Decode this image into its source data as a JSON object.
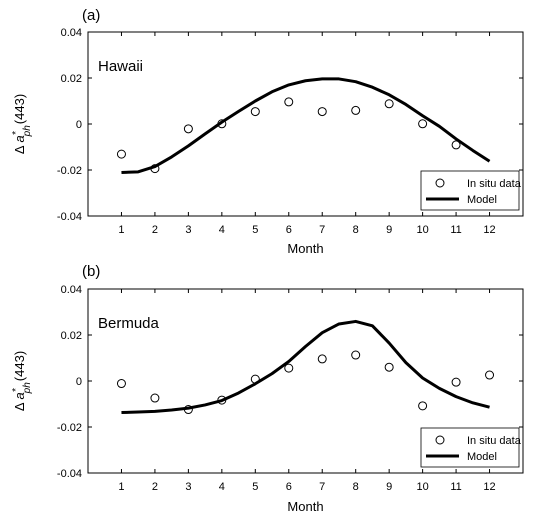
{
  "chart_data": [
    {
      "type": "line",
      "panel_label": "(a)",
      "site": "Hawaii",
      "xlabel": "Month",
      "ylabel": {
        "delta": "Δ",
        "symbol": "a",
        "superscript": "*",
        "subscript": "ph",
        "suffix": "(443)"
      },
      "x_ticks": [
        1,
        2,
        3,
        4,
        5,
        6,
        7,
        8,
        9,
        10,
        11,
        12
      ],
      "y_ticks": [
        "-0.04",
        "-0.02",
        "0",
        "0.02",
        "0.04"
      ],
      "xlim": [
        0,
        13
      ],
      "ylim": [
        -0.04,
        0.04
      ],
      "legend": {
        "position": "bottom-right",
        "entries": [
          "In situ data",
          "Model"
        ]
      },
      "series": [
        {
          "name": "In situ data",
          "style": "open-circle",
          "x": [
            1,
            2,
            3,
            4,
            5,
            6,
            7,
            8,
            9,
            10,
            11
          ],
          "y": [
            -0.0131,
            -0.0194,
            -0.0021,
            0.0001,
            0.0054,
            0.0096,
            0.0054,
            0.0059,
            0.0088,
            0.0001,
            -0.0091
          ]
        },
        {
          "name": "Model",
          "style": "line",
          "x": [
            1,
            1.5,
            2,
            2.5,
            3,
            3.5,
            4,
            4.5,
            5,
            5.5,
            6,
            6.5,
            7,
            7.5,
            8,
            8.5,
            9,
            9.5,
            10,
            10.5,
            11,
            11.5,
            12
          ],
          "y": [
            -0.0211,
            -0.0208,
            -0.0185,
            -0.0143,
            -0.0095,
            -0.0043,
            0.0008,
            0.0055,
            0.01,
            0.014,
            0.017,
            0.0188,
            0.0196,
            0.0196,
            0.0184,
            0.016,
            0.0127,
            0.0085,
            0.0036,
            -0.001,
            -0.0065,
            -0.0115,
            -0.0162
          ]
        }
      ]
    },
    {
      "type": "line",
      "panel_label": "(b)",
      "site": "Bermuda",
      "xlabel": "Month",
      "ylabel": {
        "delta": "Δ",
        "symbol": "a",
        "superscript": "*",
        "subscript": "ph",
        "suffix": "(443)"
      },
      "x_ticks": [
        1,
        2,
        3,
        4,
        5,
        6,
        7,
        8,
        9,
        10,
        11,
        12
      ],
      "y_ticks": [
        "-0.04",
        "-0.02",
        "0",
        "0.02",
        "0.04"
      ],
      "xlim": [
        0,
        13
      ],
      "ylim": [
        -0.04,
        0.04
      ],
      "legend": {
        "position": "bottom-right",
        "entries": [
          "In situ data",
          "Model"
        ]
      },
      "series": [
        {
          "name": "In situ data",
          "style": "open-circle",
          "x": [
            1,
            2,
            3,
            4,
            5,
            6,
            7,
            8,
            9,
            10,
            11,
            12
          ],
          "y": [
            -0.0011,
            -0.0074,
            -0.0124,
            -0.0083,
            0.0008,
            0.0056,
            0.0096,
            0.0113,
            0.006,
            -0.0108,
            -0.0005,
            0.0026
          ]
        },
        {
          "name": "Model",
          "style": "line",
          "x": [
            1,
            1.5,
            2,
            2.5,
            3,
            3.5,
            4,
            4.5,
            5,
            5.5,
            6,
            6.5,
            7,
            7.5,
            8,
            8.5,
            9,
            9.5,
            10,
            10.5,
            11,
            11.5,
            12
          ],
          "y": [
            -0.0137,
            -0.0135,
            -0.0132,
            -0.0126,
            -0.0118,
            -0.0104,
            -0.0085,
            -0.0052,
            -0.0012,
            0.0032,
            0.0085,
            0.015,
            0.021,
            0.0248,
            0.0259,
            0.024,
            0.0165,
            0.008,
            0.0013,
            -0.0032,
            -0.0068,
            -0.0095,
            -0.0114
          ]
        }
      ]
    }
  ]
}
